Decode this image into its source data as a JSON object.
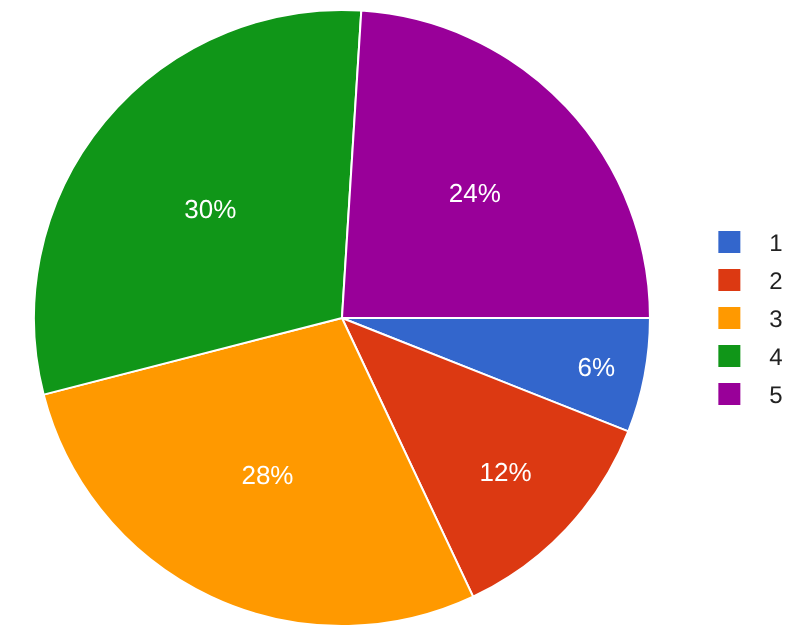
{
  "chart_data": {
    "type": "pie",
    "categories": [
      "1",
      "2",
      "3",
      "4",
      "5"
    ],
    "values": [
      6,
      12,
      28,
      30,
      24
    ],
    "value_labels": [
      "6%",
      "12%",
      "28%",
      "30%",
      "24%"
    ],
    "colors": [
      "#3366cc",
      "#dc3912",
      "#ff9900",
      "#109618",
      "#990099"
    ],
    "legend": "right"
  }
}
